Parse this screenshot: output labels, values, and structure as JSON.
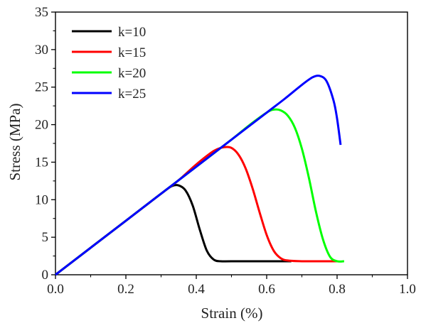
{
  "chart_data": {
    "type": "line",
    "title": "",
    "xlabel": "Strain (%)",
    "ylabel": "Stress (MPa)",
    "xlim": [
      0.0,
      1.0
    ],
    "ylim": [
      0,
      35
    ],
    "x_ticks": [
      "0.0",
      "0.2",
      "0.4",
      "0.6",
      "0.8",
      "1.0"
    ],
    "y_ticks": [
      "0",
      "5",
      "10",
      "15",
      "20",
      "25",
      "30",
      "35"
    ],
    "grid": false,
    "legend_position": "top-left",
    "series": [
      {
        "name": "k=10",
        "color": "#000000",
        "x": [
          0.0,
          0.1,
          0.2,
          0.25,
          0.3,
          0.33,
          0.35,
          0.37,
          0.39,
          0.41,
          0.43,
          0.45,
          0.47,
          0.5,
          0.6,
          0.67
        ],
        "y": [
          0.0,
          3.6,
          7.2,
          9.0,
          10.8,
          11.8,
          11.9,
          11.2,
          9.2,
          6.0,
          3.2,
          2.0,
          1.8,
          1.8,
          1.8,
          1.8
        ]
      },
      {
        "name": "k=15",
        "color": "#ff0000",
        "x": [
          0.0,
          0.1,
          0.2,
          0.3,
          0.35,
          0.4,
          0.45,
          0.48,
          0.5,
          0.52,
          0.54,
          0.56,
          0.58,
          0.6,
          0.62,
          0.64,
          0.66,
          0.7,
          0.8
        ],
        "y": [
          0.0,
          3.6,
          7.2,
          10.8,
          12.6,
          14.7,
          16.5,
          17.0,
          16.9,
          16.0,
          14.2,
          11.5,
          8.3,
          5.3,
          3.2,
          2.2,
          1.9,
          1.8,
          1.8
        ]
      },
      {
        "name": "k=20",
        "color": "#00ff00",
        "x": [
          0.0,
          0.1,
          0.2,
          0.3,
          0.4,
          0.5,
          0.55,
          0.6,
          0.62,
          0.64,
          0.66,
          0.68,
          0.7,
          0.72,
          0.74,
          0.76,
          0.78,
          0.8,
          0.82
        ],
        "y": [
          0.0,
          3.6,
          7.2,
          10.8,
          14.4,
          18.0,
          19.9,
          21.6,
          22.0,
          21.9,
          21.2,
          19.6,
          16.8,
          12.9,
          8.4,
          4.7,
          2.4,
          1.8,
          1.8
        ]
      },
      {
        "name": "k=25",
        "color": "#0000ff",
        "x": [
          0.0,
          0.1,
          0.2,
          0.3,
          0.4,
          0.5,
          0.6,
          0.65,
          0.7,
          0.73,
          0.75,
          0.77,
          0.79,
          0.8,
          0.81
        ],
        "y": [
          0.0,
          3.6,
          7.2,
          10.8,
          14.4,
          18.0,
          21.6,
          23.4,
          25.3,
          26.3,
          26.5,
          25.8,
          23.2,
          20.8,
          17.3
        ]
      }
    ]
  }
}
